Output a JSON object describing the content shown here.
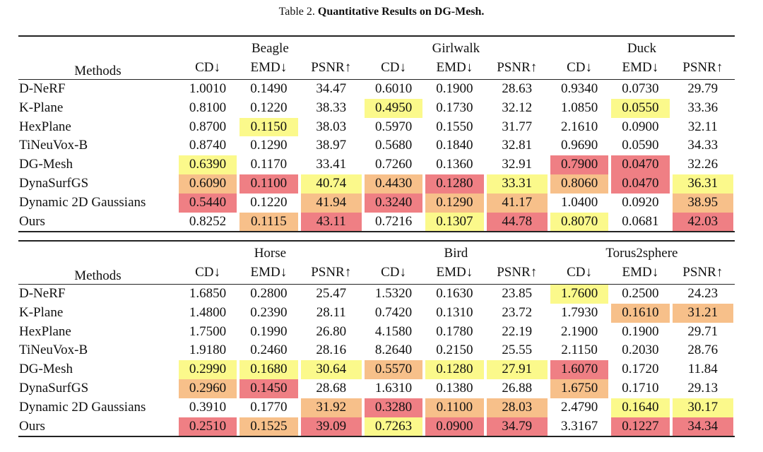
{
  "caption": {
    "prefix": "Table 2.",
    "title": "Quantitative Results on DG-Mesh."
  },
  "tables": [
    {
      "methods_header": "Methods",
      "groups": [
        "Beagle",
        "Girlwalk",
        "Duck"
      ],
      "metrics": [
        "CD↓",
        "EMD↓",
        "PSNR↑",
        "CD↓",
        "EMD↓",
        "PSNR↑",
        "CD↓",
        "EMD↓",
        "PSNR↑"
      ],
      "rows": [
        {
          "method": "D-NeRF",
          "values": [
            "1.0010",
            "0.1490",
            "34.47",
            "0.6010",
            "0.1900",
            "28.63",
            "0.9340",
            "0.0730",
            "29.79"
          ],
          "hl": [
            "",
            "",
            "",
            "",
            "",
            "",
            "",
            "",
            ""
          ]
        },
        {
          "method": "K-Plane",
          "values": [
            "0.8100",
            "0.1220",
            "38.33",
            "0.4950",
            "0.1730",
            "32.12",
            "1.0850",
            "0.0550",
            "33.36"
          ],
          "hl": [
            "",
            "",
            "",
            "y",
            "",
            "",
            "",
            "y",
            ""
          ]
        },
        {
          "method": "HexPlane",
          "values": [
            "0.8700",
            "0.1150",
            "38.03",
            "0.5970",
            "0.1550",
            "31.77",
            "2.1610",
            "0.0900",
            "32.11"
          ],
          "hl": [
            "",
            "y",
            "",
            "",
            "",
            "",
            "",
            "",
            ""
          ]
        },
        {
          "method": "TiNeuVox-B",
          "values": [
            "0.8740",
            "0.1290",
            "38.97",
            "0.5680",
            "0.1840",
            "32.81",
            "0.9690",
            "0.0590",
            "34.33"
          ],
          "hl": [
            "",
            "",
            "",
            "",
            "",
            "",
            "",
            "",
            ""
          ]
        },
        {
          "method": "DG-Mesh",
          "values": [
            "0.6390",
            "0.1170",
            "33.41",
            "0.7260",
            "0.1360",
            "32.91",
            "0.7900",
            "0.0470",
            "32.26"
          ],
          "hl": [
            "y",
            "",
            "",
            "",
            "",
            "",
            "r",
            "r",
            ""
          ]
        },
        {
          "method": "DynaSurfGS",
          "values": [
            "0.6090",
            "0.1100",
            "40.74",
            "0.4430",
            "0.1280",
            "33.31",
            "0.8060",
            "0.0470",
            "36.31"
          ],
          "hl": [
            "o",
            "r",
            "y",
            "o",
            "r",
            "y",
            "o",
            "r",
            "y"
          ]
        },
        {
          "method": "Dynamic 2D Gaussians",
          "values": [
            "0.5440",
            "0.1220",
            "41.94",
            "0.3240",
            "0.1290",
            "41.17",
            "1.0400",
            "0.0920",
            "38.95"
          ],
          "hl": [
            "r",
            "",
            "o",
            "r",
            "o",
            "o",
            "",
            "",
            "o"
          ]
        },
        {
          "method": "Ours",
          "values": [
            "0.8252",
            "0.1115",
            "43.11",
            "0.7216",
            "0.1307",
            "44.78",
            "0.8070",
            "0.0681",
            "42.03"
          ],
          "hl": [
            "",
            "o",
            "r",
            "",
            "y",
            "r",
            "y",
            "",
            "r"
          ]
        }
      ]
    },
    {
      "methods_header": "Methods",
      "groups": [
        "Horse",
        "Bird",
        "Torus2sphere"
      ],
      "metrics": [
        "CD↓",
        "EMD↓",
        "PSNR↑",
        "CD↓",
        "EMD↓",
        "PSNR↑",
        "CD↓",
        "EMD↓",
        "PSNR↑"
      ],
      "rows": [
        {
          "method": "D-NeRF",
          "values": [
            "1.6850",
            "0.2800",
            "25.47",
            "1.5320",
            "0.1630",
            "23.85",
            "1.7600",
            "0.2500",
            "24.23"
          ],
          "hl": [
            "",
            "",
            "",
            "",
            "",
            "",
            "y",
            "",
            ""
          ]
        },
        {
          "method": "K-Plane",
          "values": [
            "1.4800",
            "0.2390",
            "28.11",
            "0.7420",
            "0.1310",
            "23.72",
            "1.7930",
            "0.1610",
            "31.21"
          ],
          "hl": [
            "",
            "",
            "",
            "",
            "",
            "",
            "",
            "o",
            "o"
          ]
        },
        {
          "method": "HexPlane",
          "values": [
            "1.7500",
            "0.1990",
            "26.80",
            "4.1580",
            "0.1780",
            "22.19",
            "2.1900",
            "0.1900",
            "29.71"
          ],
          "hl": [
            "",
            "",
            "",
            "",
            "",
            "",
            "",
            "",
            ""
          ]
        },
        {
          "method": "TiNeuVox-B",
          "values": [
            "1.9180",
            "0.2460",
            "28.16",
            "8.2640",
            "0.2150",
            "25.55",
            "2.1150",
            "0.2030",
            "28.76"
          ],
          "hl": [
            "",
            "",
            "",
            "",
            "",
            "",
            "",
            "",
            ""
          ]
        },
        {
          "method": "DG-Mesh",
          "values": [
            "0.2990",
            "0.1680",
            "30.64",
            "0.5570",
            "0.1280",
            "27.91",
            "1.6070",
            "0.1720",
            "11.84"
          ],
          "hl": [
            "y",
            "y",
            "y",
            "o",
            "y",
            "y",
            "r",
            "",
            ""
          ]
        },
        {
          "method": "DynaSurfGS",
          "values": [
            "0.2960",
            "0.1450",
            "28.68",
            "1.6310",
            "0.1380",
            "26.88",
            "1.6750",
            "0.1710",
            "29.13"
          ],
          "hl": [
            "o",
            "r",
            "",
            "",
            "",
            "",
            "o",
            "",
            ""
          ]
        },
        {
          "method": "Dynamic 2D Gaussians",
          "values": [
            "0.3910",
            "0.1770",
            "31.92",
            "0.3280",
            "0.1100",
            "28.03",
            "2.4790",
            "0.1640",
            "30.17"
          ],
          "hl": [
            "",
            "",
            "o",
            "r",
            "o",
            "o",
            "",
            "y",
            "y"
          ]
        },
        {
          "method": "Ours",
          "values": [
            "0.2510",
            "0.1525",
            "39.09",
            "0.7263",
            "0.0900",
            "34.79",
            "3.3167",
            "0.1227",
            "34.34"
          ],
          "hl": [
            "r",
            "o",
            "r",
            "y",
            "r",
            "r",
            "",
            "r",
            "r"
          ]
        }
      ]
    }
  ]
}
